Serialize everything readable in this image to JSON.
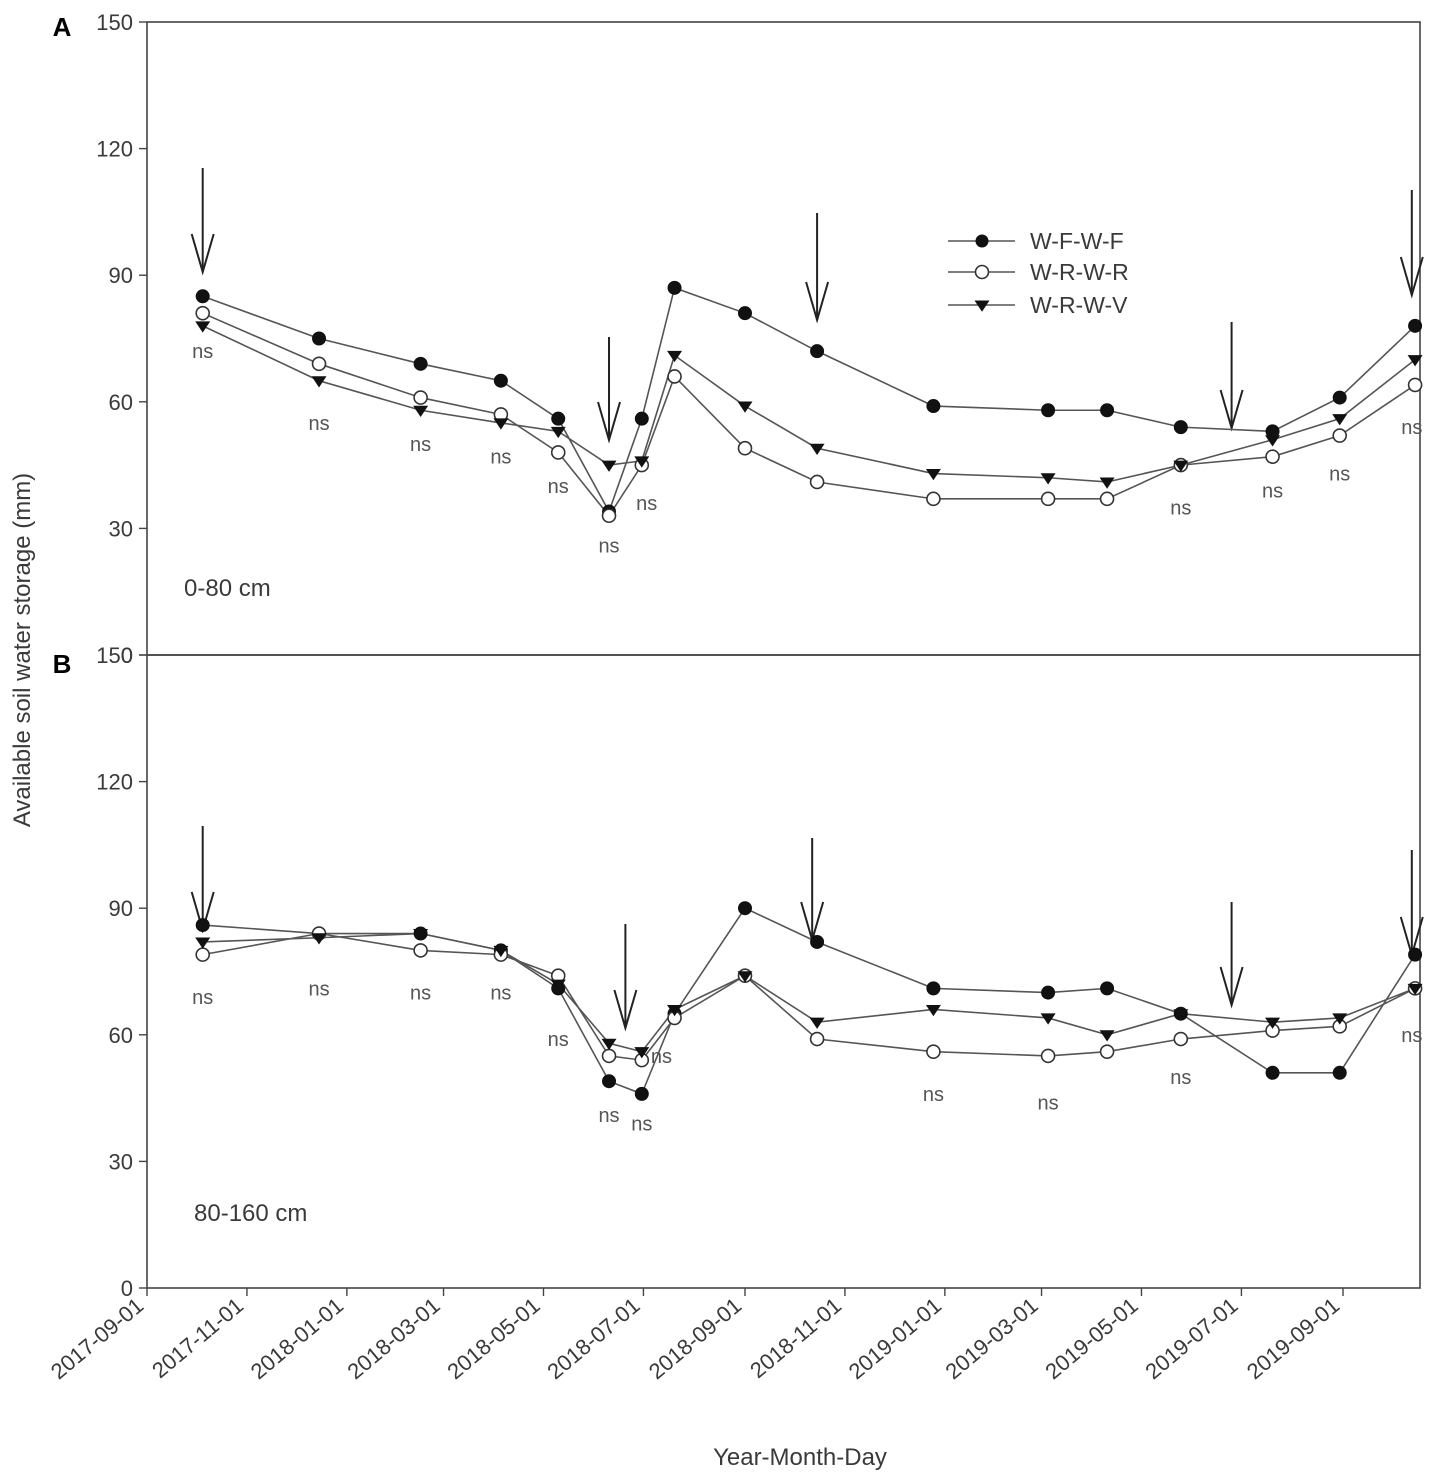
{
  "chart_data": {
    "type": "line",
    "ylabel": "Available soil water storage (mm)",
    "xlabel": "Year-Month-Day",
    "x_ticks": [
      "2017-09-01",
      "2017-11-01",
      "2018-01-01",
      "2018-03-01",
      "2018-05-01",
      "2018-07-01",
      "2018-09-01",
      "2018-11-01",
      "2019-01-01",
      "2019-03-01",
      "2019-05-01",
      "2019-07-01",
      "2019-09-01"
    ],
    "xlim": [
      "2017-09-01",
      "2019-10-18"
    ],
    "ylim": [
      0,
      150
    ],
    "y_ticks": [
      0,
      30,
      60,
      90,
      120,
      150
    ],
    "legend": {
      "placement": "upper-right",
      "entries": [
        {
          "label": "W-F-W-F",
          "marker": "filled-circle"
        },
        {
          "label": "W-R-W-R",
          "marker": "open-circle"
        },
        {
          "label": "W-R-W-V",
          "marker": "filled-triangle-down"
        }
      ]
    },
    "panels": [
      {
        "letter": "A",
        "depth_label": "0-80 cm",
        "arrow_dates": [
          "2017-10-05",
          "2018-06-10",
          "2018-10-15",
          "2019-06-25",
          "2019-10-13"
        ],
        "series": [
          {
            "name": "W-F-W-F",
            "marker": "filled-circle",
            "x": [
              "2017-10-05",
              "2017-12-15",
              "2018-02-15",
              "2018-04-05",
              "2018-05-10",
              "2018-06-10",
              "2018-06-30",
              "2018-07-20",
              "2018-09-01",
              "2018-10-15",
              "2018-12-25",
              "2019-03-05",
              "2019-04-10",
              "2019-05-25",
              "2019-07-20",
              "2019-08-30",
              "2019-10-15"
            ],
            "y": [
              85,
              75,
              69,
              65,
              56,
              34,
              56,
              87,
              81,
              72,
              59,
              58,
              58,
              54,
              53,
              61,
              78
            ]
          },
          {
            "name": "W-R-W-R",
            "marker": "open-circle",
            "x": [
              "2017-10-05",
              "2017-12-15",
              "2018-02-15",
              "2018-04-05",
              "2018-05-10",
              "2018-06-10",
              "2018-06-30",
              "2018-07-20",
              "2018-09-01",
              "2018-10-15",
              "2018-12-25",
              "2019-03-05",
              "2019-04-10",
              "2019-05-25",
              "2019-07-20",
              "2019-08-30",
              "2019-10-15"
            ],
            "y": [
              81,
              69,
              61,
              57,
              48,
              33,
              45,
              66,
              49,
              41,
              37,
              37,
              37,
              45,
              47,
              52,
              64
            ]
          },
          {
            "name": "W-R-W-V",
            "marker": "filled-triangle-down",
            "x": [
              "2017-10-05",
              "2017-12-15",
              "2018-02-15",
              "2018-04-05",
              "2018-05-10",
              "2018-06-10",
              "2018-06-30",
              "2018-07-20",
              "2018-09-01",
              "2018-10-15",
              "2018-12-25",
              "2019-03-05",
              "2019-04-10",
              "2019-05-25",
              "2019-07-20",
              "2019-08-30",
              "2019-10-15"
            ],
            "y": [
              78,
              65,
              58,
              55,
              53,
              45,
              46,
              71,
              59,
              49,
              43,
              42,
              41,
              45,
              51,
              56,
              70
            ]
          }
        ],
        "annotations": [
          {
            "text": "ns",
            "x": "2017-10-05",
            "y": 72
          },
          {
            "text": "ns",
            "x": "2017-12-15",
            "y": 55
          },
          {
            "text": "ns",
            "x": "2018-02-15",
            "y": 50
          },
          {
            "text": "ns",
            "x": "2018-04-05",
            "y": 47
          },
          {
            "text": "ns",
            "x": "2018-05-10",
            "y": 40
          },
          {
            "text": "ns",
            "x": "2018-06-10",
            "y": 26
          },
          {
            "text": "ns",
            "x": "2018-07-03",
            "y": 36
          },
          {
            "text": "ns",
            "x": "2019-05-25",
            "y": 35
          },
          {
            "text": "ns",
            "x": "2019-07-20",
            "y": 39
          },
          {
            "text": "ns",
            "x": "2019-08-30",
            "y": 43
          },
          {
            "text": "ns",
            "x": "2019-10-13",
            "y": 54
          }
        ]
      },
      {
        "letter": "B",
        "depth_label": "80-160 cm",
        "arrow_dates": [
          "2017-10-05",
          "2018-06-20",
          "2018-10-12",
          "2019-06-25",
          "2019-10-13"
        ],
        "series": [
          {
            "name": "W-F-W-F",
            "marker": "filled-circle",
            "x": [
              "2017-10-05",
              "2017-12-15",
              "2018-02-15",
              "2018-04-05",
              "2018-05-10",
              "2018-06-10",
              "2018-06-30",
              "2018-07-20",
              "2018-09-01",
              "2018-10-15",
              "2018-12-25",
              "2019-03-05",
              "2019-04-10",
              "2019-05-25",
              "2019-07-20",
              "2019-08-30",
              "2019-10-15"
            ],
            "y": [
              86,
              84,
              84,
              80,
              71,
              49,
              46,
              65,
              90,
              82,
              71,
              70,
              71,
              65,
              51,
              51,
              79
            ]
          },
          {
            "name": "W-R-W-R",
            "marker": "open-circle",
            "x": [
              "2017-10-05",
              "2017-12-15",
              "2018-02-15",
              "2018-04-05",
              "2018-05-10",
              "2018-06-10",
              "2018-06-30",
              "2018-07-20",
              "2018-09-01",
              "2018-10-15",
              "2018-12-25",
              "2019-03-05",
              "2019-04-10",
              "2019-05-25",
              "2019-07-20",
              "2019-08-30",
              "2019-10-15"
            ],
            "y": [
              79,
              84,
              80,
              79,
              74,
              55,
              54,
              64,
              74,
              59,
              56,
              55,
              56,
              59,
              61,
              62,
              71
            ]
          },
          {
            "name": "W-R-W-V",
            "marker": "filled-triangle-down",
            "x": [
              "2017-10-05",
              "2017-12-15",
              "2018-02-15",
              "2018-04-05",
              "2018-05-10",
              "2018-06-10",
              "2018-06-30",
              "2018-07-20",
              "2018-09-01",
              "2018-10-15",
              "2018-12-25",
              "2019-03-05",
              "2019-04-10",
              "2019-05-25",
              "2019-07-20",
              "2019-08-30",
              "2019-10-15"
            ],
            "y": [
              82,
              83,
              84,
              80,
              72,
              58,
              56,
              66,
              74,
              63,
              66,
              64,
              60,
              65,
              63,
              64,
              71
            ]
          }
        ],
        "annotations": [
          {
            "text": "ns",
            "x": "2017-10-05",
            "y": 69
          },
          {
            "text": "ns",
            "x": "2017-12-15",
            "y": 71
          },
          {
            "text": "ns",
            "x": "2018-02-15",
            "y": 70
          },
          {
            "text": "ns",
            "x": "2018-04-05",
            "y": 70
          },
          {
            "text": "ns",
            "x": "2018-05-10",
            "y": 59
          },
          {
            "text": "ns",
            "x": "2018-06-10",
            "y": 41
          },
          {
            "text": "ns",
            "x": "2018-06-30",
            "y": 39
          },
          {
            "text": "ns",
            "x": "2018-07-12",
            "y": 55
          },
          {
            "text": "ns",
            "x": "2018-12-25",
            "y": 46
          },
          {
            "text": "ns",
            "x": "2019-03-05",
            "y": 44
          },
          {
            "text": "ns",
            "x": "2019-05-25",
            "y": 50
          },
          {
            "text": "ns",
            "x": "2019-10-13",
            "y": 60
          }
        ]
      }
    ]
  }
}
